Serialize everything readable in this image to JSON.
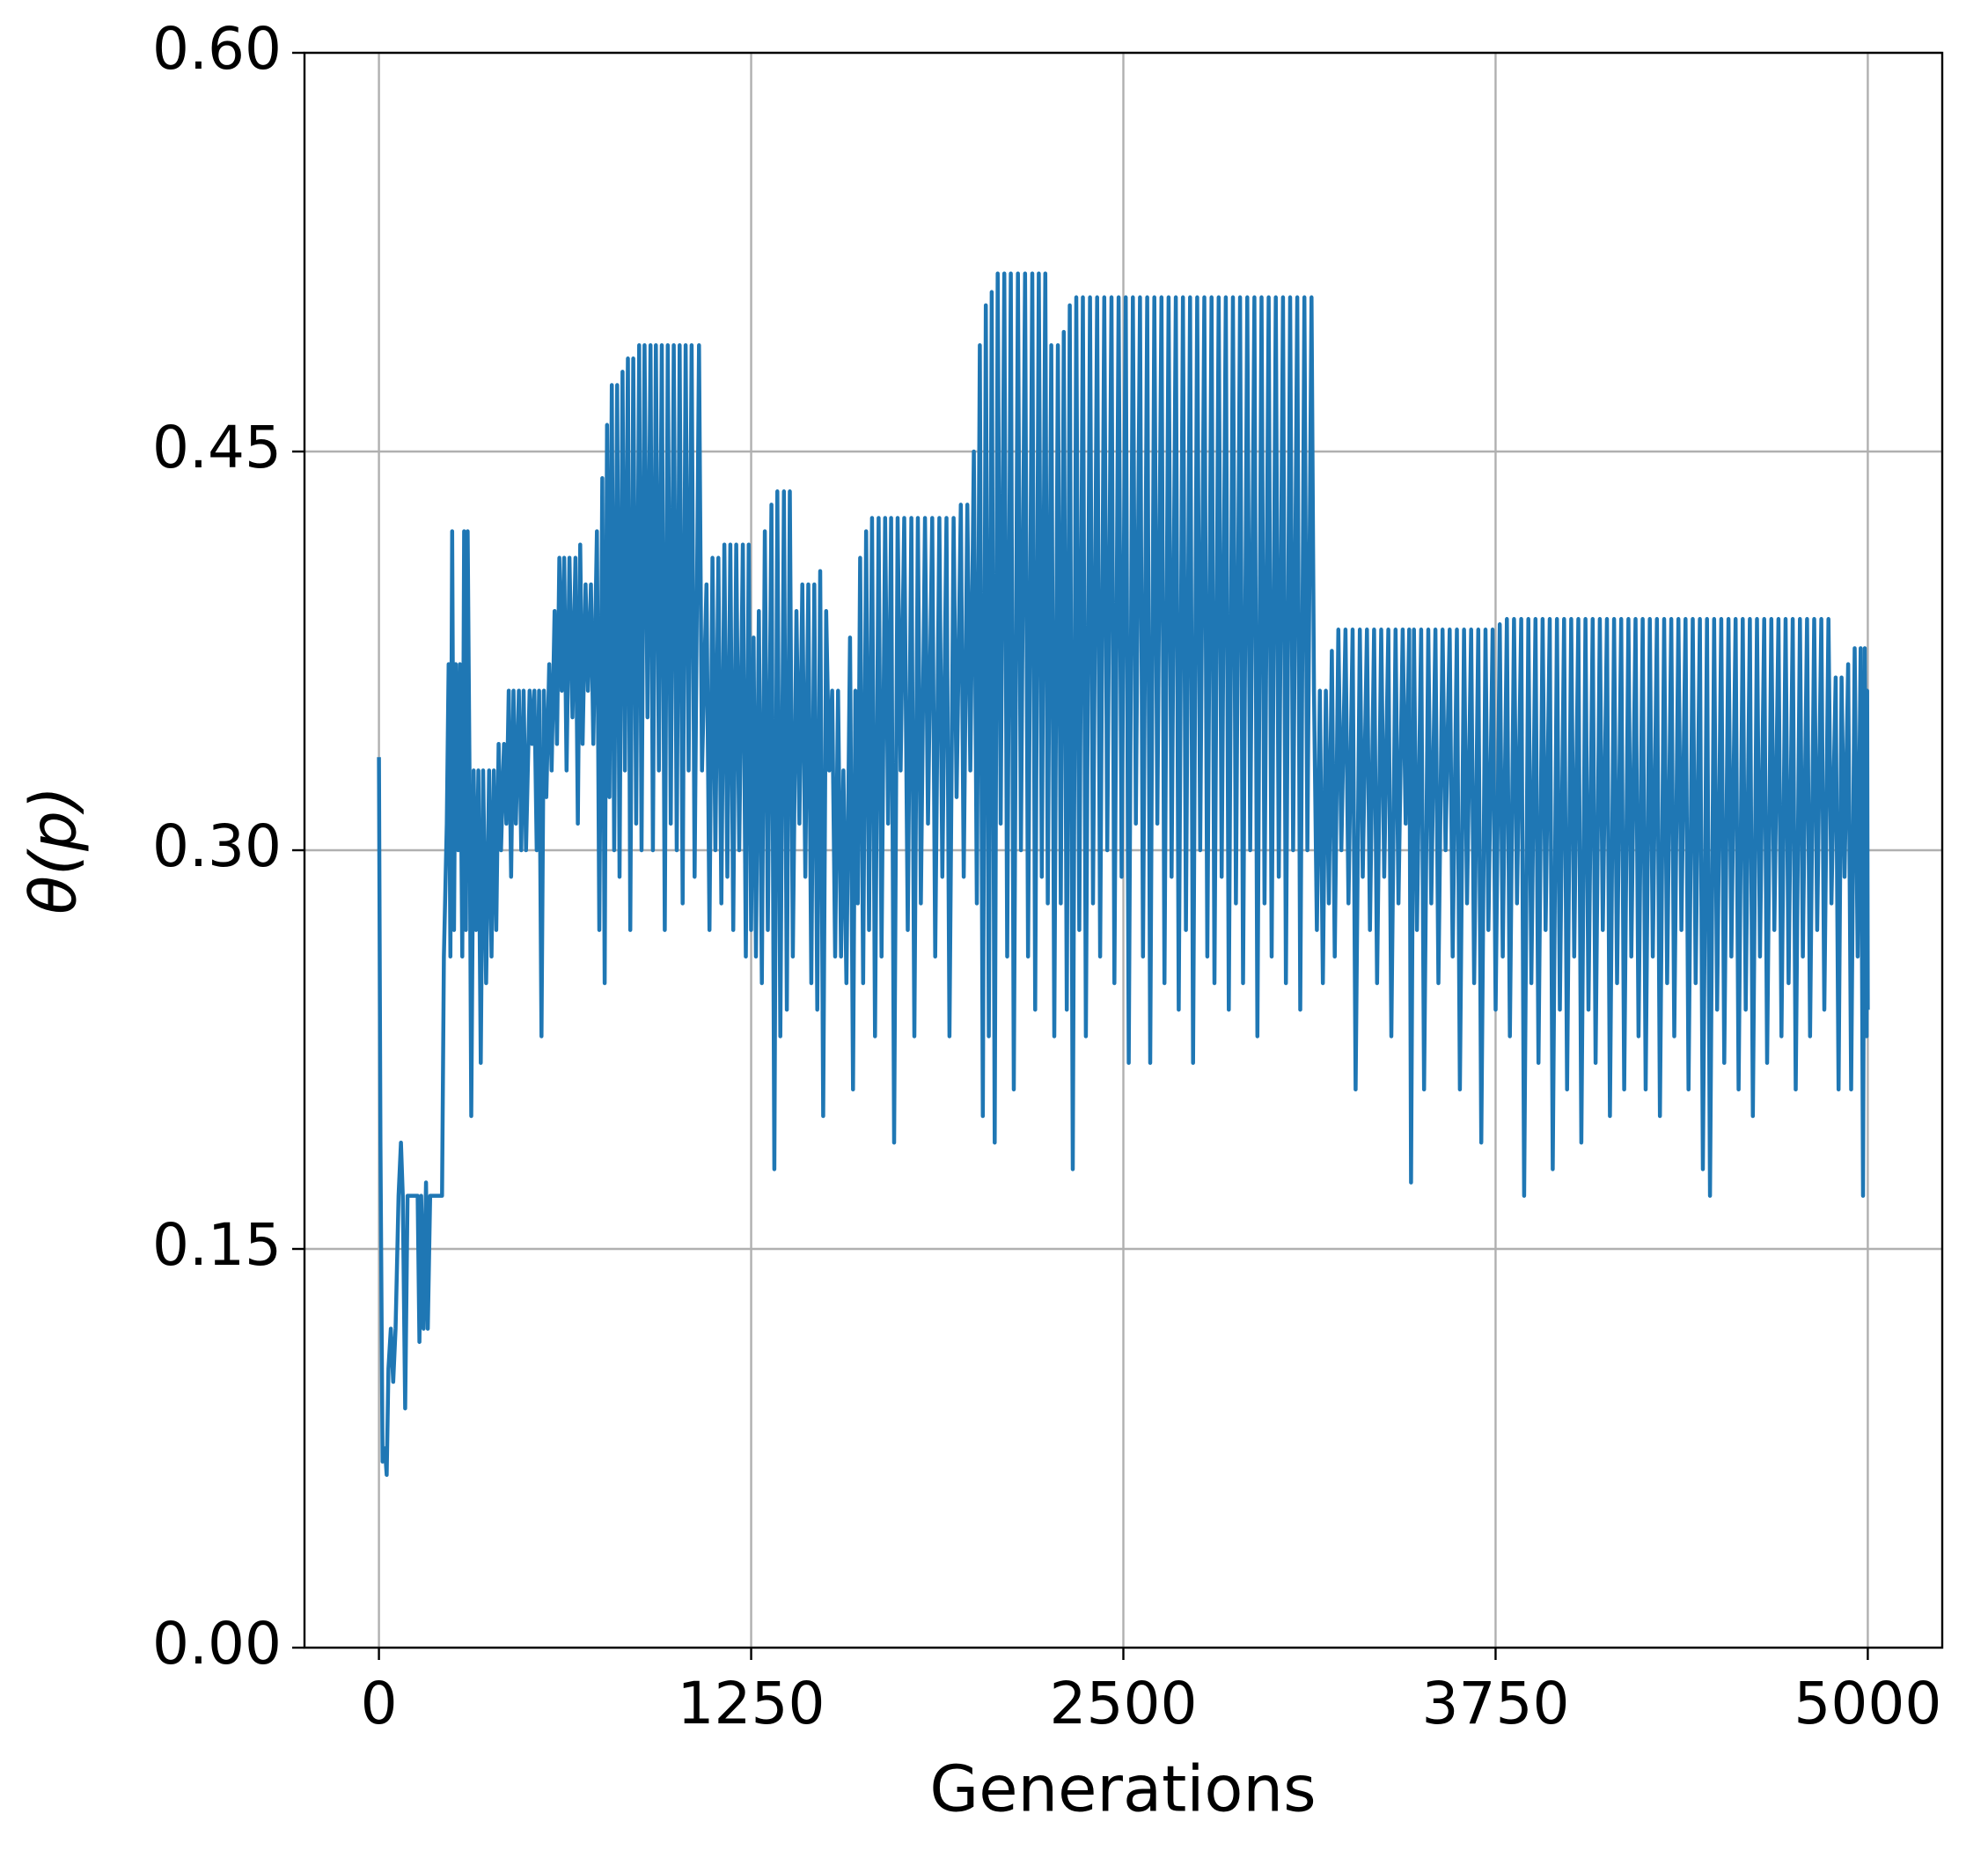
{
  "chart_data": {
    "type": "line",
    "xlabel": "Generations",
    "ylabel": "θ(p)",
    "color": "#1f77b4",
    "grid": true,
    "xlim": [
      -250,
      5250
    ],
    "ylim": [
      0,
      0.6
    ],
    "xticks": [
      0,
      1250,
      2500,
      3750,
      5000
    ],
    "yticks": [
      {
        "value": 0,
        "label": "0.00"
      },
      {
        "value": 0.15,
        "label": "0.15"
      },
      {
        "value": 0.3,
        "label": "0.30"
      },
      {
        "value": 0.45,
        "label": "0.45"
      },
      {
        "value": 0.6,
        "label": "0.60"
      }
    ],
    "x": [
      0,
      5,
      12,
      20,
      26,
      32,
      40,
      48,
      56,
      66,
      74,
      80,
      88,
      96,
      130,
      136,
      142,
      150,
      158,
      164,
      172,
      212,
      218,
      228,
      234,
      240,
      246,
      252,
      258,
      266,
      272,
      280,
      286,
      292,
      298,
      304,
      310,
      318,
      326,
      334,
      342,
      350,
      360,
      370,
      378,
      386,
      394,
      402,
      410,
      420,
      428,
      436,
      444,
      452,
      460,
      470,
      478,
      486,
      494,
      506,
      514,
      522,
      530,
      538,
      546,
      554,
      562,
      572,
      580,
      590,
      598,
      606,
      614,
      622,
      630,
      640,
      650,
      660,
      668,
      676,
      684,
      694,
      702,
      712,
      720,
      732,
      740,
      750,
      758,
      766,
      774,
      782,
      790,
      800,
      808,
      818,
      826,
      836,
      844,
      854,
      864,
      874,
      882,
      892,
      902,
      912,
      920,
      930,
      940,
      950,
      960,
      970,
      980,
      990,
      1000,
      1010,
      1020,
      1030,
      1040,
      1050,
      1060,
      1075,
      1085,
      1100,
      1110,
      1120,
      1130,
      1140,
      1150,
      1160,
      1170,
      1180,
      1190,
      1200,
      1210,
      1222,
      1232,
      1242,
      1250,
      1258,
      1266,
      1276,
      1286,
      1296,
      1306,
      1318,
      1328,
      1338,
      1348,
      1360,
      1370,
      1380,
      1390,
      1402,
      1412,
      1422,
      1432,
      1442,
      1452,
      1462,
      1472,
      1482,
      1492,
      1502,
      1512,
      1522,
      1532,
      1542,
      1552,
      1560,
      1570,
      1582,
      1592,
      1600,
      1608,
      1616,
      1626,
      1636,
      1646,
      1656,
      1666,
      1678,
      1688,
      1700,
      1710,
      1720,
      1730,
      1742,
      1752,
      1764,
      1776,
      1788,
      1798,
      1810,
      1820,
      1834,
      1844,
      1858,
      1868,
      1882,
      1892,
      1906,
      1916,
      1930,
      1940,
      1954,
      1964,
      1976,
      1986,
      1998,
      2008,
      2018,
      2028,
      2038,
      2048,
      2058,
      2068,
      2078,
      2088,
      2100,
      2110,
      2122,
      2132,
      2146,
      2156,
      2170,
      2180,
      2194,
      2204,
      2216,
      2226,
      2238,
      2246,
      2258,
      2268,
      2280,
      2290,
      2300,
      2310,
      2320,
      2330,
      2342,
      2352,
      2364,
      2374,
      2388,
      2398,
      2412,
      2422,
      2436,
      2446,
      2460,
      2470,
      2484,
      2494,
      2508,
      2518,
      2532,
      2542,
      2556,
      2566,
      2580,
      2590,
      2604,
      2614,
      2628,
      2638,
      2652,
      2662,
      2676,
      2686,
      2700,
      2710,
      2724,
      2734,
      2748,
      2758,
      2772,
      2782,
      2796,
      2806,
      2820,
      2830,
      2844,
      2854,
      2868,
      2878,
      2892,
      2902,
      2916,
      2926,
      2940,
      2950,
      2964,
      2974,
      2988,
      2998,
      3012,
      3022,
      3036,
      3046,
      3060,
      3070,
      3084,
      3094,
      3108,
      3118,
      3132,
      3140,
      3150,
      3160,
      3170,
      3180,
      3190,
      3200,
      3210,
      3222,
      3232,
      3246,
      3256,
      3270,
      3280,
      3294,
      3304,
      3318,
      3328,
      3342,
      3352,
      3366,
      3376,
      3390,
      3400,
      3414,
      3424,
      3438,
      3448,
      3460,
      3466,
      3476,
      3486,
      3500,
      3510,
      3524,
      3534,
      3548,
      3558,
      3572,
      3582,
      3596,
      3606,
      3620,
      3630,
      3644,
      3654,
      3668,
      3678,
      3692,
      3702,
      3716,
      3726,
      3740,
      3750,
      3764,
      3774,
      3788,
      3798,
      3812,
      3822,
      3836,
      3846,
      3860,
      3870,
      3884,
      3894,
      3908,
      3918,
      3932,
      3942,
      3956,
      3966,
      3980,
      3990,
      4004,
      4014,
      4028,
      4038,
      4052,
      4062,
      4076,
      4086,
      4100,
      4110,
      4124,
      4134,
      4148,
      4158,
      4172,
      4182,
      4196,
      4206,
      4220,
      4230,
      4244,
      4254,
      4268,
      4278,
      4292,
      4302,
      4316,
      4326,
      4340,
      4350,
      4364,
      4374,
      4388,
      4398,
      4412,
      4422,
      4436,
      4446,
      4460,
      4470,
      4484,
      4494,
      4508,
      4518,
      4532,
      4542,
      4556,
      4566,
      4580,
      4590,
      4604,
      4614,
      4628,
      4638,
      4652,
      4662,
      4676,
      4686,
      4700,
      4710,
      4724,
      4734,
      4748,
      4758,
      4772,
      4782,
      4796,
      4806,
      4820,
      4830,
      4844,
      4854,
      4868,
      4878,
      4892,
      4902,
      4912,
      4922,
      4934,
      4944,
      4956,
      4966,
      4976,
      4984,
      4990,
      4996,
      4998,
      5000
    ],
    "values": [
      0.335,
      0.19,
      0.07,
      0.075,
      0.065,
      0.105,
      0.12,
      0.1,
      0.12,
      0.17,
      0.19,
      0.17,
      0.09,
      0.17,
      0.17,
      0.115,
      0.17,
      0.12,
      0.175,
      0.12,
      0.17,
      0.17,
      0.26,
      0.31,
      0.37,
      0.26,
      0.42,
      0.27,
      0.37,
      0.3,
      0.37,
      0.26,
      0.42,
      0.27,
      0.42,
      0.33,
      0.2,
      0.33,
      0.27,
      0.33,
      0.22,
      0.33,
      0.25,
      0.33,
      0.26,
      0.33,
      0.27,
      0.34,
      0.3,
      0.34,
      0.31,
      0.36,
      0.29,
      0.36,
      0.31,
      0.36,
      0.3,
      0.36,
      0.3,
      0.36,
      0.34,
      0.36,
      0.3,
      0.36,
      0.23,
      0.36,
      0.32,
      0.37,
      0.33,
      0.39,
      0.34,
      0.41,
      0.36,
      0.41,
      0.33,
      0.41,
      0.35,
      0.41,
      0.31,
      0.415,
      0.34,
      0.4,
      0.36,
      0.4,
      0.34,
      0.42,
      0.27,
      0.44,
      0.25,
      0.46,
      0.32,
      0.475,
      0.3,
      0.475,
      0.29,
      0.48,
      0.33,
      0.485,
      0.27,
      0.485,
      0.31,
      0.49,
      0.3,
      0.49,
      0.35,
      0.49,
      0.3,
      0.49,
      0.33,
      0.49,
      0.27,
      0.49,
      0.31,
      0.49,
      0.3,
      0.49,
      0.28,
      0.49,
      0.33,
      0.49,
      0.29,
      0.49,
      0.33,
      0.4,
      0.27,
      0.41,
      0.3,
      0.41,
      0.28,
      0.415,
      0.29,
      0.415,
      0.27,
      0.415,
      0.3,
      0.415,
      0.26,
      0.415,
      0.27,
      0.38,
      0.26,
      0.39,
      0.25,
      0.42,
      0.27,
      0.43,
      0.18,
      0.435,
      0.23,
      0.435,
      0.24,
      0.435,
      0.26,
      0.39,
      0.31,
      0.4,
      0.29,
      0.4,
      0.25,
      0.4,
      0.24,
      0.405,
      0.2,
      0.39,
      0.33,
      0.36,
      0.26,
      0.36,
      0.26,
      0.33,
      0.25,
      0.38,
      0.21,
      0.36,
      0.28,
      0.41,
      0.25,
      0.42,
      0.27,
      0.425,
      0.23,
      0.425,
      0.26,
      0.425,
      0.31,
      0.425,
      0.19,
      0.425,
      0.33,
      0.425,
      0.27,
      0.425,
      0.23,
      0.425,
      0.28,
      0.425,
      0.31,
      0.425,
      0.26,
      0.425,
      0.29,
      0.425,
      0.23,
      0.425,
      0.32,
      0.43,
      0.29,
      0.43,
      0.33,
      0.45,
      0.28,
      0.49,
      0.2,
      0.505,
      0.23,
      0.51,
      0.19,
      0.517,
      0.31,
      0.517,
      0.26,
      0.517,
      0.21,
      0.517,
      0.3,
      0.517,
      0.26,
      0.517,
      0.24,
      0.517,
      0.29,
      0.517,
      0.28,
      0.49,
      0.23,
      0.49,
      0.28,
      0.495,
      0.24,
      0.505,
      0.18,
      0.508,
      0.27,
      0.508,
      0.23,
      0.508,
      0.28,
      0.508,
      0.26,
      0.508,
      0.3,
      0.508,
      0.25,
      0.508,
      0.29,
      0.508,
      0.22,
      0.508,
      0.31,
      0.508,
      0.26,
      0.508,
      0.22,
      0.508,
      0.31,
      0.508,
      0.25,
      0.508,
      0.29,
      0.508,
      0.24,
      0.508,
      0.27,
      0.508,
      0.22,
      0.508,
      0.3,
      0.508,
      0.26,
      0.508,
      0.25,
      0.508,
      0.29,
      0.508,
      0.24,
      0.508,
      0.28,
      0.508,
      0.25,
      0.508,
      0.3,
      0.508,
      0.23,
      0.508,
      0.28,
      0.508,
      0.26,
      0.508,
      0.29,
      0.508,
      0.25,
      0.508,
      0.3,
      0.508,
      0.24,
      0.508,
      0.3,
      0.508,
      0.36,
      0.27,
      0.36,
      0.25,
      0.36,
      0.28,
      0.375,
      0.26,
      0.383,
      0.3,
      0.383,
      0.28,
      0.383,
      0.21,
      0.383,
      0.29,
      0.383,
      0.27,
      0.383,
      0.25,
      0.383,
      0.29,
      0.383,
      0.23,
      0.383,
      0.28,
      0.383,
      0.31,
      0.383,
      0.175,
      0.383,
      0.27,
      0.383,
      0.21,
      0.383,
      0.28,
      0.383,
      0.25,
      0.383,
      0.3,
      0.383,
      0.26,
      0.383,
      0.21,
      0.383,
      0.28,
      0.383,
      0.25,
      0.383,
      0.19,
      0.383,
      0.27,
      0.383,
      0.24,
      0.385,
      0.26,
      0.387,
      0.23,
      0.387,
      0.28,
      0.387,
      0.17,
      0.387,
      0.25,
      0.387,
      0.22,
      0.387,
      0.27,
      0.387,
      0.18,
      0.387,
      0.24,
      0.387,
      0.21,
      0.387,
      0.26,
      0.387,
      0.19,
      0.387,
      0.24,
      0.387,
      0.22,
      0.387,
      0.27,
      0.387,
      0.2,
      0.387,
      0.25,
      0.387,
      0.21,
      0.387,
      0.26,
      0.387,
      0.23,
      0.387,
      0.21,
      0.387,
      0.26,
      0.387,
      0.2,
      0.387,
      0.25,
      0.387,
      0.23,
      0.387,
      0.27,
      0.387,
      0.21,
      0.387,
      0.25,
      0.387,
      0.18,
      0.387,
      0.17,
      0.387,
      0.24,
      0.387,
      0.22,
      0.387,
      0.26,
      0.387,
      0.21,
      0.387,
      0.24,
      0.387,
      0.2,
      0.387,
      0.26,
      0.387,
      0.22,
      0.387,
      0.27,
      0.387,
      0.23,
      0.387,
      0.25,
      0.387,
      0.21,
      0.387,
      0.26,
      0.387,
      0.23,
      0.387,
      0.27,
      0.387,
      0.24,
      0.387,
      0.28,
      0.365,
      0.21,
      0.365,
      0.29,
      0.37,
      0.21,
      0.376,
      0.26,
      0.376,
      0.17,
      0.376,
      0.23,
      0.36,
      0.24
    ]
  }
}
